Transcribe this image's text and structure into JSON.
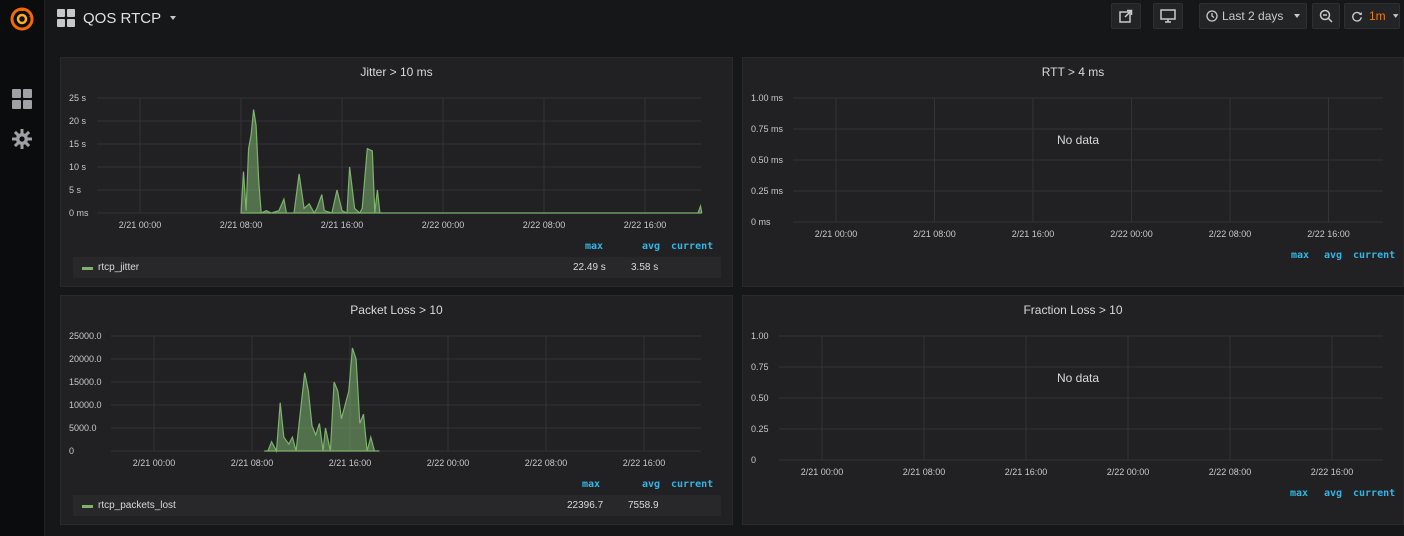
{
  "dashboard": {
    "title": "QOS RTCP"
  },
  "toolbar": {
    "time_range": "Last 2 days",
    "refresh_interval": "1m"
  },
  "icons": {
    "logo": "grafana-logo-icon",
    "dashboards": "dashboards-grid-icon",
    "settings": "gear-icon",
    "share": "share-icon",
    "tv": "monitor-icon",
    "clock": "clock-icon",
    "zoom": "zoom-out-icon",
    "refresh": "refresh-icon"
  },
  "colors": {
    "series": "#7eb26d",
    "legend_header": "#33b5e5",
    "refresh_accent": "#eb7b18",
    "grid": "#333438"
  },
  "legend_labels": {
    "max": "max",
    "avg": "avg",
    "current": "current"
  },
  "panels": {
    "jitter": {
      "title": "Jitter > 10 ms",
      "legend": {
        "series": "rtcp_jitter",
        "max": "22.49 s",
        "avg": "3.58 s",
        "current": ""
      }
    },
    "rtt": {
      "title": "RTT > 4 ms",
      "no_data": "No data"
    },
    "packet_loss": {
      "title": "Packet Loss > 10",
      "legend": {
        "series": "rtcp_packets_lost",
        "max": "22396.7",
        "avg": "7558.9",
        "current": ""
      }
    },
    "fraction_loss": {
      "title": "Fraction Loss > 10",
      "no_data": "No data"
    }
  },
  "chart_data": [
    {
      "type": "area",
      "title": "Jitter > 10 ms",
      "x_unit": "hours from 2/20 20:00",
      "xticks": [
        "2/21 00:00",
        "2/21 08:00",
        "2/21 16:00",
        "2/22 00:00",
        "2/22 08:00",
        "2/22 16:00"
      ],
      "xtick_hours": [
        4,
        12,
        20,
        28,
        36,
        44
      ],
      "xlim": [
        0,
        48.5
      ],
      "yticks": [
        "0 ms",
        "5 s",
        "10 s",
        "15 s",
        "20 s",
        "25 s"
      ],
      "ylim": [
        0,
        25
      ],
      "ylabel_unit": "s",
      "series": [
        {
          "name": "rtcp_jitter",
          "points": [
            [
              12.0,
              0
            ],
            [
              12.2,
              9
            ],
            [
              12.4,
              0.5
            ],
            [
              12.6,
              14
            ],
            [
              12.8,
              17
            ],
            [
              13.0,
              22.5
            ],
            [
              13.2,
              19
            ],
            [
              13.4,
              7
            ],
            [
              13.6,
              0
            ],
            [
              14.0,
              0.5
            ],
            [
              14.4,
              0
            ],
            [
              15.0,
              0.5
            ],
            [
              15.4,
              3
            ],
            [
              15.6,
              0
            ],
            [
              16.2,
              0
            ],
            [
              16.6,
              8.5
            ],
            [
              17.0,
              1
            ],
            [
              17.4,
              2
            ],
            [
              17.8,
              0
            ],
            [
              18.0,
              1
            ],
            [
              18.4,
              4
            ],
            [
              18.6,
              0.5
            ],
            [
              19.2,
              0
            ],
            [
              19.6,
              5
            ],
            [
              20.0,
              0.5
            ],
            [
              20.4,
              0
            ],
            [
              20.6,
              10
            ],
            [
              21.0,
              1
            ],
            [
              21.4,
              0
            ],
            [
              21.6,
              1
            ],
            [
              22.0,
              14
            ],
            [
              22.4,
              13.5
            ],
            [
              22.6,
              0
            ],
            [
              22.8,
              5
            ],
            [
              23.0,
              0
            ],
            [
              48.2,
              0
            ],
            [
              48.4,
              1.5
            ],
            [
              48.5,
              0
            ]
          ]
        }
      ]
    },
    {
      "type": "line",
      "title": "RTT > 4 ms",
      "xticks": [
        "2/21 00:00",
        "2/21 08:00",
        "2/21 16:00",
        "2/22 00:00",
        "2/22 08:00",
        "2/22 16:00"
      ],
      "yticks": [
        "0 ms",
        "0.25 ms",
        "0.50 ms",
        "0.75 ms",
        "1.00 ms"
      ],
      "ylim": [
        0,
        1.0
      ],
      "series": []
    },
    {
      "type": "area",
      "title": "Packet Loss > 10",
      "x_unit": "hours from 2/20 20:00",
      "xticks": [
        "2/21 00:00",
        "2/21 08:00",
        "2/21 16:00",
        "2/22 00:00",
        "2/22 08:00",
        "2/22 16:00"
      ],
      "xtick_hours": [
        4,
        12,
        20,
        28,
        36,
        44
      ],
      "xlim": [
        0,
        48.5
      ],
      "yticks": [
        "0",
        "5000.0",
        "10000.0",
        "15000.0",
        "20000.0",
        "25000.0"
      ],
      "ylim": [
        0,
        25000
      ],
      "series": [
        {
          "name": "rtcp_packets_lost",
          "points": [
            [
              13.0,
              0
            ],
            [
              13.3,
              0
            ],
            [
              13.6,
              2000
            ],
            [
              14.0,
              0
            ],
            [
              14.3,
              10500
            ],
            [
              14.6,
              3000
            ],
            [
              15.0,
              1500
            ],
            [
              15.3,
              3000
            ],
            [
              15.6,
              0
            ],
            [
              16.3,
              17000
            ],
            [
              16.6,
              13000
            ],
            [
              16.9,
              5500
            ],
            [
              17.2,
              3500
            ],
            [
              17.5,
              6000
            ],
            [
              17.8,
              0
            ],
            [
              18.0,
              5000
            ],
            [
              18.4,
              0
            ],
            [
              18.7,
              15000
            ],
            [
              19.0,
              13000
            ],
            [
              19.3,
              7000
            ],
            [
              19.6,
              10000
            ],
            [
              19.9,
              13000
            ],
            [
              20.2,
              22400
            ],
            [
              20.5,
              20000
            ],
            [
              20.8,
              6000
            ],
            [
              21.1,
              8000
            ],
            [
              21.4,
              0
            ],
            [
              21.7,
              3000
            ],
            [
              22.0,
              0
            ],
            [
              22.4,
              0
            ]
          ]
        }
      ]
    },
    {
      "type": "line",
      "title": "Fraction Loss > 10",
      "xticks": [
        "2/21 00:00",
        "2/21 08:00",
        "2/21 16:00",
        "2/22 00:00",
        "2/22 08:00",
        "2/22 16:00"
      ],
      "yticks": [
        "0",
        "0.25",
        "0.50",
        "0.75",
        "1.00"
      ],
      "ylim": [
        0,
        1.0
      ],
      "series": []
    }
  ]
}
